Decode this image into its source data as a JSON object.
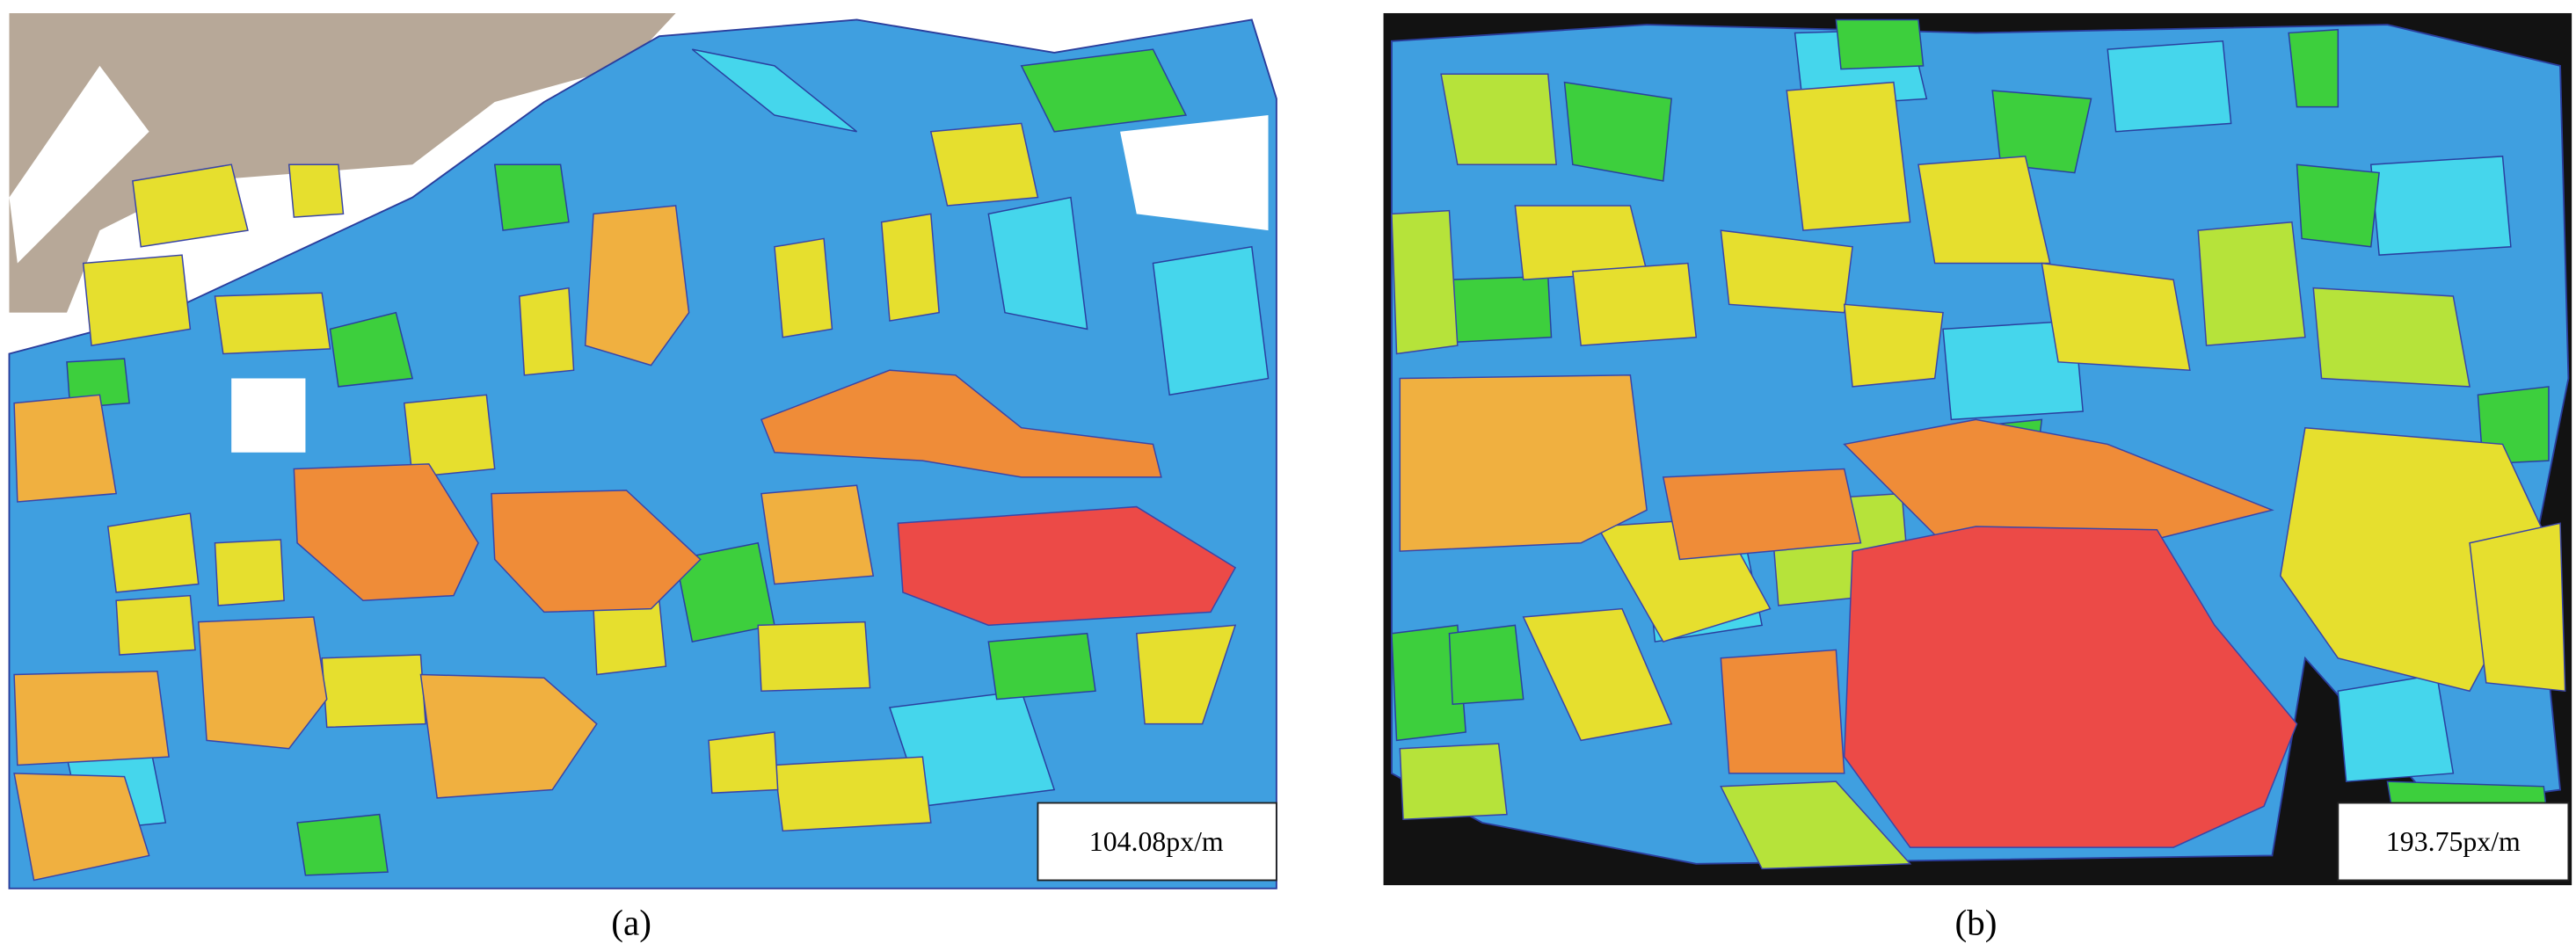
{
  "panels": [
    {
      "caption": "(a)",
      "scale_label": "104.08px/m"
    },
    {
      "caption": "(b)",
      "scale_label": "193.75px/m"
    }
  ]
}
